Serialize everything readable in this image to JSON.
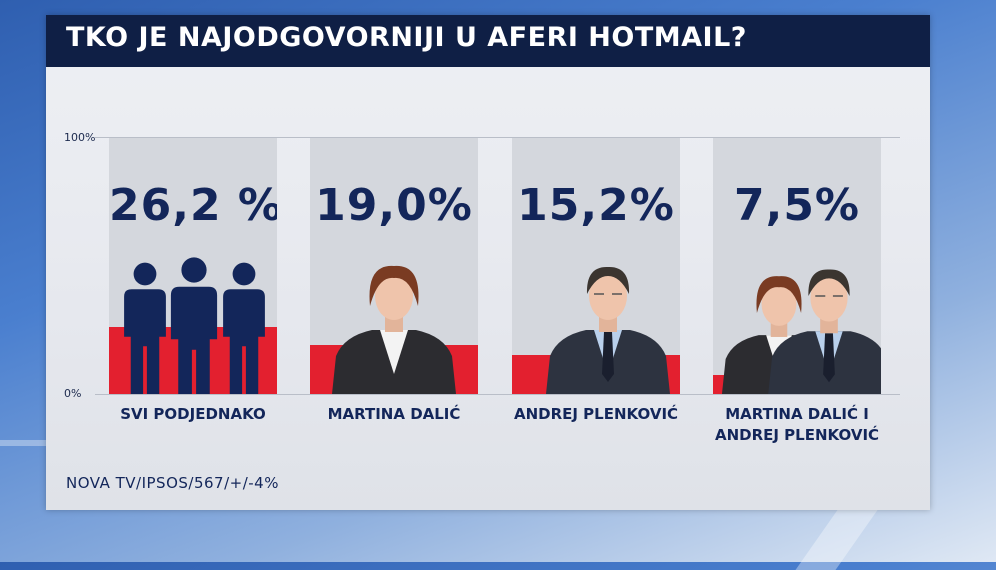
{
  "title": "TKO JE NAJODGOVORNIJI U AFERI HOTMAIL?",
  "axis": {
    "top_label": "100%",
    "bottom_label": "0%"
  },
  "source": "NOVA TV/IPSOS/567/+/-4%",
  "colors": {
    "bar": "#e3202f",
    "text": "#13265a",
    "titlebar": "#0f1f45",
    "column": "#d4d7dd"
  },
  "chart_data": {
    "type": "bar",
    "title": "TKO JE NAJODGOVORNIJI U AFERI HOTMAIL?",
    "ylim": [
      0,
      100
    ],
    "ytick_labels": [
      "0%",
      "100%"
    ],
    "categories": [
      "SVI PODJEDNAKO",
      "MARTINA DALIĆ",
      "ANDREJ PLENKOVIĆ",
      "MARTINA DALIĆ I ANDREJ PLENKOVIĆ"
    ],
    "values": [
      26.2,
      19.0,
      15.2,
      7.5
    ],
    "value_labels": [
      "26,2 %",
      "19,0%",
      "15,2%",
      "7,5%"
    ],
    "category_lines": [
      [
        "SVI PODJEDNAKO"
      ],
      [
        "MARTINA DALIĆ"
      ],
      [
        "ANDREJ PLENKOVIĆ"
      ],
      [
        "MARTINA DALIĆ I",
        "ANDREJ PLENKOVIĆ"
      ]
    ],
    "icons": [
      "people-group-icon",
      "woman-portrait-icon",
      "man-portrait-icon",
      "couple-portrait-icon"
    ]
  }
}
